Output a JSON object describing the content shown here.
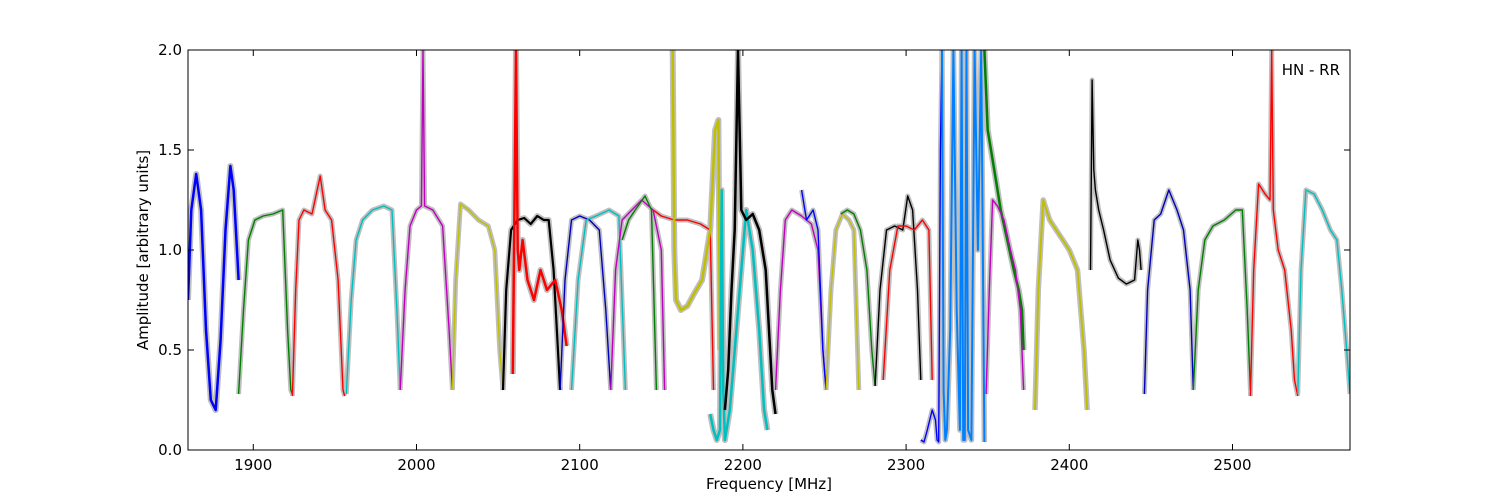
{
  "chart_data": {
    "type": "line",
    "title": "",
    "xlabel": "Frequency [MHz]",
    "ylabel": "Amplitude [arbitrary units]",
    "annotation": "HN - RR",
    "annotation_position": "top-right",
    "xlim": [
      1860,
      2572
    ],
    "ylim": [
      0.0,
      2.0
    ],
    "xticks": [
      1900,
      2000,
      2100,
      2200,
      2300,
      2400,
      2500
    ],
    "xtick_labels": [
      "1900",
      "2000",
      "2100",
      "2200",
      "2300",
      "2400",
      "2500"
    ],
    "yticks": [
      0.0,
      0.5,
      1.0,
      1.5,
      2.0
    ],
    "ytick_labels": [
      "0.0",
      "0.5",
      "1.0",
      "1.5",
      "2.0"
    ],
    "grid": false,
    "legend": "none",
    "background_color": "#bfbfbf",
    "series": [
      {
        "color": "#0000ff",
        "width": 2.5,
        "x": [
          1860,
          1862,
          1865,
          1868,
          1871,
          1874,
          1877,
          1880,
          1883,
          1886,
          1888,
          1890,
          1891
        ],
        "y": [
          0.75,
          1.2,
          1.38,
          1.2,
          0.6,
          0.25,
          0.2,
          0.55,
          1.1,
          1.42,
          1.3,
          1.0,
          0.85
        ]
      },
      {
        "color": "#007f00",
        "width": 1.4,
        "x": [
          1891,
          1894,
          1897,
          1901,
          1906,
          1912,
          1918,
          1921,
          1923,
          1924
        ],
        "y": [
          0.28,
          0.7,
          1.05,
          1.15,
          1.17,
          1.18,
          1.2,
          0.6,
          0.3,
          0.28
        ]
      },
      {
        "color": "#ff0000",
        "width": 1.4,
        "x": [
          1924,
          1926,
          1928,
          1931,
          1936,
          1941,
          1944,
          1948,
          1952,
          1955,
          1956
        ],
        "y": [
          0.27,
          0.8,
          1.15,
          1.2,
          1.18,
          1.37,
          1.2,
          1.15,
          0.85,
          0.3,
          0.27
        ]
      },
      {
        "color": "#00bfbf",
        "width": 1.4,
        "x": [
          1957,
          1960,
          1963,
          1967,
          1973,
          1980,
          1985,
          1988,
          1990
        ],
        "y": [
          0.28,
          0.75,
          1.05,
          1.15,
          1.2,
          1.22,
          1.2,
          0.7,
          0.3
        ]
      },
      {
        "color": "#bf00bf",
        "width": 1.4,
        "x": [
          1990,
          1993,
          1996,
          2000,
          2003,
          2004,
          2005,
          2010,
          2016,
          2020,
          2022
        ],
        "y": [
          0.3,
          0.8,
          1.12,
          1.2,
          1.22,
          2.0,
          1.22,
          1.2,
          1.12,
          0.6,
          0.3
        ]
      },
      {
        "color": "#bfbf00",
        "width": 1.4,
        "x": [
          2022,
          2024,
          2027,
          2032,
          2038,
          2044,
          2048,
          2051,
          2053
        ],
        "y": [
          0.3,
          0.85,
          1.23,
          1.2,
          1.15,
          1.12,
          1.0,
          0.5,
          0.3
        ]
      },
      {
        "color": "#000000",
        "width": 2.2,
        "x": [
          2053,
          2055,
          2058,
          2062,
          2066,
          2070,
          2074,
          2078,
          2081,
          2084,
          2088
        ],
        "y": [
          0.3,
          0.8,
          1.1,
          1.15,
          1.16,
          1.13,
          1.17,
          1.15,
          1.15,
          0.9,
          0.3
        ]
      },
      {
        "color": "#ff0000",
        "width": 2.5,
        "x": [
          2059,
          2061,
          2062,
          2063,
          2065,
          2068,
          2072,
          2076,
          2080,
          2085,
          2089,
          2092
        ],
        "y": [
          0.38,
          2.0,
          1.0,
          0.9,
          1.05,
          0.85,
          0.75,
          0.9,
          0.8,
          0.85,
          0.7,
          0.52
        ]
      },
      {
        "color": "#0000bf",
        "width": 1.4,
        "x": [
          2088,
          2091,
          2095,
          2100,
          2106,
          2112,
          2116,
          2119
        ],
        "y": [
          0.3,
          0.85,
          1.15,
          1.17,
          1.15,
          1.1,
          0.7,
          0.3
        ]
      },
      {
        "color": "#00bfbf",
        "width": 1.4,
        "x": [
          2095,
          2099,
          2104,
          2110,
          2118,
          2124,
          2128
        ],
        "y": [
          0.3,
          0.85,
          1.15,
          1.17,
          1.2,
          1.17,
          0.3
        ]
      },
      {
        "color": "#bf00bf",
        "width": 1.4,
        "x": [
          2119,
          2122,
          2126,
          2132,
          2138,
          2145,
          2150,
          2152
        ],
        "y": [
          0.3,
          0.9,
          1.15,
          1.2,
          1.25,
          1.2,
          1.0,
          0.3
        ]
      },
      {
        "color": "#007f00",
        "width": 1.4,
        "x": [
          2126,
          2130,
          2134,
          2140,
          2144,
          2147
        ],
        "y": [
          1.05,
          1.15,
          1.2,
          1.27,
          1.2,
          0.3
        ]
      },
      {
        "color": "#ff0000",
        "width": 1.4,
        "x": [
          2145,
          2150,
          2158,
          2166,
          2174,
          2180,
          2182
        ],
        "y": [
          1.2,
          1.17,
          1.15,
          1.15,
          1.13,
          1.1,
          0.3
        ]
      },
      {
        "color": "#bfbf00",
        "width": 2.5,
        "x": [
          2157,
          2158,
          2159,
          2162,
          2166,
          2170,
          2175,
          2180,
          2183,
          2185,
          2186
        ],
        "y": [
          2.0,
          1.0,
          0.75,
          0.7,
          0.72,
          0.78,
          0.85,
          1.1,
          1.6,
          1.65,
          0.5
        ]
      },
      {
        "color": "#00bfbf",
        "width": 2.5,
        "x": [
          2180,
          2182,
          2184,
          2186,
          2187,
          2188,
          2189,
          2192,
          2196,
          2202,
          2206,
          2210,
          2213,
          2215
        ],
        "y": [
          0.18,
          0.1,
          0.05,
          0.1,
          1.3,
          0.3,
          0.05,
          0.2,
          0.6,
          1.2,
          1.0,
          0.6,
          0.2,
          0.1
        ]
      },
      {
        "color": "#000000",
        "width": 2.5,
        "x": [
          2189,
          2191,
          2193,
          2195,
          2197,
          2199,
          2202,
          2206,
          2210,
          2214,
          2218,
          2220
        ],
        "y": [
          0.2,
          0.4,
          0.8,
          1.1,
          2.0,
          1.2,
          1.15,
          1.18,
          1.1,
          0.9,
          0.3,
          0.18
        ]
      },
      {
        "color": "#bf00bf",
        "width": 1.4,
        "x": [
          2220,
          2223,
          2226,
          2230,
          2236,
          2242,
          2246,
          2249,
          2251
        ],
        "y": [
          0.3,
          0.8,
          1.15,
          1.2,
          1.17,
          1.13,
          1.0,
          0.5,
          0.3
        ]
      },
      {
        "color": "#0000ff",
        "width": 1.4,
        "x": [
          2236,
          2239,
          2243,
          2246,
          2249,
          2251
        ],
        "y": [
          1.3,
          1.15,
          1.2,
          1.1,
          0.5,
          0.3
        ]
      },
      {
        "color": "#bfbf00",
        "width": 1.4,
        "x": [
          2251,
          2254,
          2257,
          2261,
          2265,
          2268,
          2271
        ],
        "y": [
          0.3,
          0.8,
          1.1,
          1.18,
          1.15,
          1.1,
          0.3
        ]
      },
      {
        "color": "#007f00",
        "width": 1.4,
        "x": [
          2260,
          2264,
          2268,
          2272,
          2276,
          2279,
          2281
        ],
        "y": [
          1.18,
          1.2,
          1.18,
          1.1,
          0.9,
          0.5,
          0.32
        ]
      },
      {
        "color": "#000000",
        "width": 1.4,
        "x": [
          2281,
          2284,
          2288,
          2293,
          2298,
          2301,
          2304,
          2307,
          2309
        ],
        "y": [
          0.32,
          0.8,
          1.1,
          1.12,
          1.1,
          1.27,
          1.2,
          0.8,
          0.35
        ]
      },
      {
        "color": "#ff0000",
        "width": 1.4,
        "x": [
          2286,
          2290,
          2295,
          2300,
          2305,
          2310,
          2314,
          2316
        ],
        "y": [
          0.35,
          0.9,
          1.12,
          1.12,
          1.1,
          1.15,
          1.1,
          0.35
        ]
      },
      {
        "color": "#0000ff",
        "width": 1.4,
        "x": [
          2309,
          2311,
          2313,
          2316,
          2318,
          2319,
          2320,
          2321,
          2322
        ],
        "y": [
          0.05,
          0.04,
          0.1,
          0.2,
          0.15,
          0.05,
          0.04,
          1.5,
          2.0
        ]
      },
      {
        "color": "#0080ff",
        "width": 2.0,
        "x": [
          2322,
          2323,
          2324,
          2325,
          2327,
          2329,
          2331,
          2333,
          2334,
          2335,
          2336,
          2337,
          2338,
          2340,
          2342,
          2344,
          2346,
          2348
        ],
        "y": [
          2.0,
          0.3,
          0.05,
          0.1,
          0.6,
          2.0,
          0.7,
          0.1,
          2.0,
          0.05,
          0.05,
          2.0,
          0.1,
          0.05,
          2.0,
          1.0,
          2.0,
          0.04
        ]
      },
      {
        "color": "#007f00",
        "width": 2.5,
        "x": [
          2348,
          2350,
          2352,
          2355,
          2358,
          2362,
          2366,
          2369,
          2371,
          2372
        ],
        "y": [
          2.0,
          1.6,
          1.5,
          1.35,
          1.2,
          1.05,
          0.9,
          0.8,
          0.7,
          0.5
        ]
      },
      {
        "color": "#bf00bf",
        "width": 1.4,
        "x": [
          2349,
          2351,
          2353,
          2356,
          2360,
          2364,
          2367,
          2370,
          2372
        ],
        "y": [
          0.28,
          0.8,
          1.25,
          1.22,
          1.15,
          1.0,
          0.9,
          0.7,
          0.3
        ]
      },
      {
        "color": "#bfbf00",
        "width": 2.0,
        "x": [
          2379,
          2381,
          2384,
          2388,
          2392,
          2396,
          2400,
          2405,
          2409,
          2411
        ],
        "y": [
          0.2,
          0.8,
          1.25,
          1.15,
          1.1,
          1.05,
          1.0,
          0.9,
          0.5,
          0.2
        ]
      },
      {
        "color": "#000000",
        "width": 1.4,
        "x": [
          2413,
          2414,
          2415,
          2416,
          2418,
          2421,
          2425,
          2430,
          2435,
          2440,
          2442,
          2443,
          2444
        ],
        "y": [
          0.9,
          1.85,
          1.4,
          1.3,
          1.2,
          1.1,
          0.95,
          0.86,
          0.83,
          0.85,
          1.05,
          1.0,
          0.9
        ]
      },
      {
        "color": "#0000bf",
        "width": 1.4,
        "x": [
          2446,
          2448,
          2452,
          2456,
          2461,
          2466,
          2470,
          2474,
          2476
        ],
        "y": [
          0.28,
          0.8,
          1.15,
          1.18,
          1.3,
          1.2,
          1.1,
          0.8,
          0.3
        ]
      },
      {
        "color": "#007f00",
        "width": 1.4,
        "x": [
          2476,
          2479,
          2483,
          2488,
          2495,
          2502,
          2506,
          2509,
          2511
        ],
        "y": [
          0.3,
          0.8,
          1.05,
          1.12,
          1.15,
          1.2,
          1.2,
          0.7,
          0.3
        ]
      },
      {
        "color": "#ff0000",
        "width": 1.4,
        "x": [
          2511,
          2513,
          2516,
          2520,
          2523,
          2524,
          2525,
          2528,
          2532,
          2536,
          2538,
          2540
        ],
        "y": [
          0.27,
          0.9,
          1.33,
          1.28,
          1.25,
          2.0,
          1.2,
          1.0,
          0.9,
          0.6,
          0.35,
          0.27
        ]
      },
      {
        "color": "#00bfbf",
        "width": 1.4,
        "x": [
          2540,
          2542,
          2545,
          2550,
          2555,
          2560,
          2564,
          2567,
          2570,
          2572
        ],
        "y": [
          0.28,
          0.9,
          1.3,
          1.28,
          1.2,
          1.1,
          1.05,
          0.8,
          0.5,
          0.28
        ]
      }
    ]
  }
}
